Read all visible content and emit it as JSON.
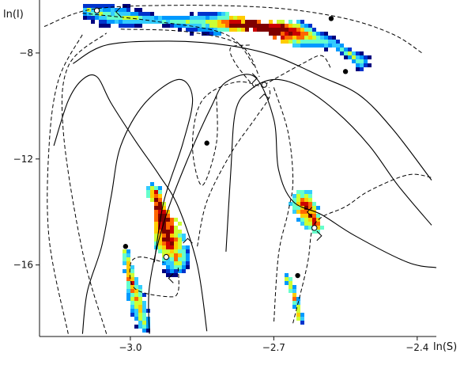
{
  "chart_data": {
    "type": "scatter",
    "title": "",
    "xlabel": "ln(S)",
    "ylabel": "ln(I)",
    "x_ticks": [
      -3.0,
      -2.7,
      -2.4
    ],
    "x_tick_labels": [
      "−3.0",
      "−2.7",
      "−2.4"
    ],
    "y_ticks": [
      -8,
      -12,
      -16
    ],
    "y_tick_labels": [
      "−8",
      "−12",
      "−16"
    ],
    "xlim": [
      -3.19,
      -2.36
    ],
    "ylim": [
      -18.7,
      -6.0
    ],
    "grid": false,
    "legend": "none",
    "colormap": [
      "#00007f",
      "#0033cc",
      "#0099ff",
      "#33ccff",
      "#66ffcc",
      "#ccff33",
      "#ffcc00",
      "#ff6600",
      "#cc0000",
      "#7f0000"
    ],
    "density_regions": [
      {
        "name": "top band",
        "points": [
          [
            -3.09,
            -6.4
          ],
          [
            -3.0,
            -6.7
          ],
          [
            -2.9,
            -6.8
          ],
          [
            -2.8,
            -6.9
          ],
          [
            -2.72,
            -7.0
          ],
          [
            -2.64,
            -7.3
          ],
          [
            -2.57,
            -7.7
          ],
          [
            -2.52,
            -8.3
          ]
        ],
        "peak": [
          -2.725,
          -7.25
        ],
        "peak_intensity": 1.0,
        "width": 0.75
      },
      {
        "name": "lower left blob",
        "points": [
          [
            -2.95,
            -13.2
          ],
          [
            -2.935,
            -14.2
          ],
          [
            -2.92,
            -15.2
          ],
          [
            -2.9,
            -15.9
          ]
        ],
        "peak": [
          -2.94,
          -14.3
        ],
        "peak_intensity": 0.72,
        "width": 1.0
      },
      {
        "name": "lower left stripe",
        "points": [
          [
            -3.01,
            -15.5
          ],
          [
            -3.0,
            -16.5
          ],
          [
            -2.985,
            -17.4
          ],
          [
            -2.97,
            -18.3
          ]
        ],
        "peak": [
          -3.0,
          -16.5
        ],
        "peak_intensity": 0.3,
        "width": 0.55
      },
      {
        "name": "lower right blob",
        "points": [
          [
            -2.64,
            -13.6
          ],
          [
            -2.625,
            -14.1
          ],
          [
            -2.61,
            -14.6
          ]
        ],
        "peak": [
          -2.625,
          -14.0
        ],
        "peak_intensity": 0.45,
        "width": 0.8
      },
      {
        "name": "lower right stripe",
        "points": [
          [
            -2.67,
            -16.5
          ],
          [
            -2.655,
            -17.3
          ],
          [
            -2.645,
            -18.0
          ]
        ],
        "peak": [
          -2.66,
          -17.3
        ],
        "peak_intensity": 0.25,
        "width": 0.45
      }
    ],
    "solid_curves": [
      [
        [
          -2.8,
          -15.5
        ],
        [
          -2.79,
          -12.5
        ],
        [
          -2.78,
          -10.2
        ],
        [
          -2.75,
          -9.4
        ],
        [
          -2.7,
          -9.0
        ],
        [
          -2.64,
          -9.3
        ],
        [
          -2.57,
          -10.2
        ],
        [
          -2.5,
          -11.5
        ],
        [
          -2.44,
          -13.0
        ],
        [
          -2.37,
          -14.5
        ]
      ],
      [
        [
          -3.12,
          -8.4
        ],
        [
          -3.05,
          -7.7
        ],
        [
          -2.92,
          -7.55
        ],
        [
          -2.8,
          -7.7
        ],
        [
          -2.7,
          -8.1
        ],
        [
          -2.6,
          -8.9
        ],
        [
          -2.52,
          -9.6
        ],
        [
          -2.45,
          -10.9
        ],
        [
          -2.37,
          -12.8
        ]
      ],
      [
        [
          -3.16,
          -11.5
        ],
        [
          -3.13,
          -9.8
        ],
        [
          -3.1,
          -9.0
        ],
        [
          -3.07,
          -8.9
        ],
        [
          -3.04,
          -9.9
        ],
        [
          -2.99,
          -11.3
        ],
        [
          -2.94,
          -12.6
        ],
        [
          -2.9,
          -13.8
        ],
        [
          -2.86,
          -16.0
        ],
        [
          -2.84,
          -18.5
        ]
      ],
      [
        [
          -2.96,
          -18.6
        ],
        [
          -2.96,
          -16.8
        ],
        [
          -2.93,
          -14.4
        ],
        [
          -2.88,
          -12.0
        ],
        [
          -2.83,
          -10.0
        ],
        [
          -2.8,
          -9.1
        ],
        [
          -2.74,
          -8.9
        ],
        [
          -2.7,
          -10.5
        ],
        [
          -2.69,
          -12.4
        ],
        [
          -2.66,
          -13.6
        ],
        [
          -2.6,
          -14.1
        ],
        [
          -2.53,
          -14.9
        ],
        [
          -2.42,
          -15.9
        ],
        [
          -2.36,
          -16.1
        ]
      ],
      [
        [
          -3.1,
          -18.6
        ],
        [
          -3.09,
          -17.0
        ],
        [
          -3.06,
          -15.3
        ],
        [
          -3.04,
          -13.4
        ],
        [
          -3.02,
          -11.5
        ],
        [
          -2.97,
          -9.9
        ],
        [
          -2.9,
          -9.0
        ],
        [
          -2.87,
          -9.7
        ],
        [
          -2.89,
          -11.4
        ],
        [
          -2.93,
          -13.6
        ],
        [
          -2.95,
          -15.9
        ]
      ]
    ],
    "dashed_curves": [
      [
        [
          -3.18,
          -7.0
        ],
        [
          -3.08,
          -6.35
        ],
        [
          -2.9,
          -6.2
        ],
        [
          -2.7,
          -6.3
        ],
        [
          -2.55,
          -6.7
        ],
        [
          -2.45,
          -7.3
        ],
        [
          -2.39,
          -8.0
        ]
      ],
      [
        [
          -3.13,
          -18.6
        ],
        [
          -3.17,
          -15.0
        ],
        [
          -3.17,
          -11.5
        ],
        [
          -3.15,
          -9.0
        ],
        [
          -3.1,
          -7.3
        ]
      ],
      [
        [
          -3.05,
          -18.6
        ],
        [
          -3.1,
          -15.5
        ],
        [
          -3.14,
          -11.0
        ],
        [
          -3.13,
          -8.5
        ],
        [
          -3.05,
          -7.25
        ]
      ],
      [
        [
          -2.9,
          -16.1
        ],
        [
          -2.9,
          -17.0
        ],
        [
          -2.92,
          -17.2
        ],
        [
          -2.99,
          -16.9
        ],
        [
          -3.0,
          -16.0
        ],
        [
          -2.98,
          -15.7
        ],
        [
          -2.93,
          -15.9
        ]
      ],
      [
        [
          -2.86,
          -15.3
        ],
        [
          -2.84,
          -13.6
        ],
        [
          -2.79,
          -11.8
        ],
        [
          -2.74,
          -10.5
        ],
        [
          -2.71,
          -9.7
        ],
        [
          -2.71,
          -9.3
        ]
      ],
      [
        [
          -2.7,
          -9.3
        ],
        [
          -2.67,
          -11.0
        ],
        [
          -2.66,
          -12.8
        ],
        [
          -2.67,
          -14.0
        ],
        [
          -2.69,
          -15.6
        ],
        [
          -2.7,
          -18.2
        ]
      ],
      [
        [
          -2.66,
          -18.2
        ],
        [
          -2.63,
          -16.0
        ],
        [
          -2.62,
          -14.7
        ],
        [
          -2.6,
          -14.2
        ],
        [
          -2.55,
          -13.8
        ],
        [
          -2.5,
          -13.2
        ],
        [
          -2.42,
          -12.6
        ],
        [
          -2.37,
          -12.7
        ]
      ],
      [
        [
          -2.82,
          -9.6
        ],
        [
          -2.82,
          -11.4
        ],
        [
          -2.85,
          -13.0
        ],
        [
          -2.87,
          -11.5
        ],
        [
          -2.85,
          -9.8
        ],
        [
          -2.78,
          -9.1
        ],
        [
          -2.72,
          -9.3
        ]
      ],
      [
        [
          -2.74,
          -9.3
        ],
        [
          -2.78,
          -8.4
        ],
        [
          -2.79,
          -7.8
        ],
        [
          -2.75,
          -7.7
        ]
      ],
      [
        [
          -2.72,
          -9.2
        ],
        [
          -2.64,
          -8.4
        ],
        [
          -2.6,
          -8.1
        ],
        [
          -2.58,
          -8.6
        ]
      ],
      [
        [
          -3.1,
          -6.5
        ],
        [
          -2.95,
          -6.8
        ],
        [
          -2.8,
          -7.3
        ],
        [
          -2.74,
          -8.5
        ]
      ],
      [
        [
          -3.02,
          -7.1
        ],
        [
          -2.88,
          -7.2
        ],
        [
          -2.77,
          -7.7
        ],
        [
          -2.73,
          -8.9
        ]
      ]
    ],
    "stable_points": [
      [
        -3.01,
        -15.3
      ],
      [
        -2.84,
        -11.4
      ],
      [
        -2.65,
        -16.4
      ],
      [
        -2.55,
        -8.7
      ],
      [
        -2.58,
        -6.7
      ]
    ],
    "saddle_points": [
      [
        -3.07,
        -6.4
      ],
      [
        -2.925,
        -15.7
      ],
      [
        -2.72,
        -9.2
      ],
      [
        -2.615,
        -14.6
      ]
    ],
    "arrows": [
      {
        "at": [
          -3.03,
          -6.45
        ],
        "dir": "left"
      },
      {
        "at": [
          -2.735,
          -8.95
        ],
        "dir": "right"
      },
      {
        "at": [
          -2.72,
          -9.55
        ],
        "dir": "up"
      },
      {
        "at": [
          -2.88,
          -15.0
        ],
        "dir": "up"
      },
      {
        "at": [
          -2.92,
          -16.5
        ],
        "dir": "left"
      },
      {
        "at": [
          -2.63,
          -14.0
        ],
        "dir": "left"
      },
      {
        "at": [
          -2.6,
          -14.9
        ],
        "dir": "right"
      }
    ]
  }
}
